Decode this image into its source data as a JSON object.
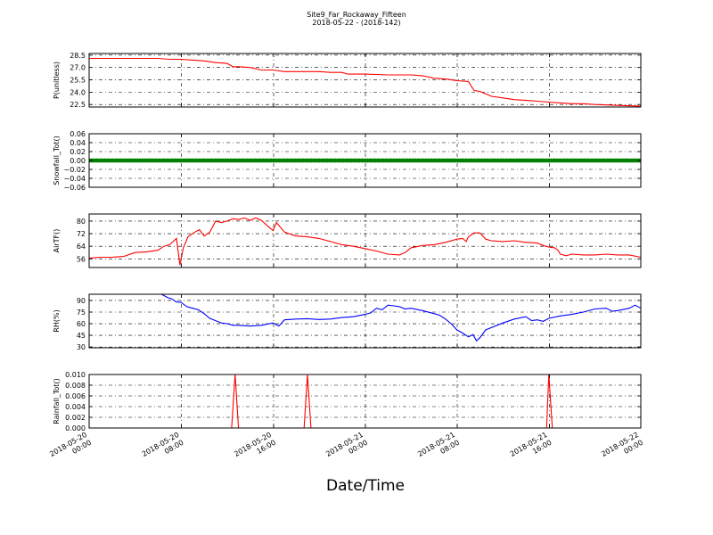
{
  "title": "Site9_Far_Rockaway_Fifteen",
  "subtitle": "2018-05-22 - (2018-142)",
  "xlabel": "Date/Time",
  "x_ticks": [
    {
      "l1": "2018-05-20",
      "l2": "00:00"
    },
    {
      "l1": "2018-05-20",
      "l2": "08:00"
    },
    {
      "l1": "2018-05-20",
      "l2": "16:00"
    },
    {
      "l1": "2018-05-21",
      "l2": "00:00"
    },
    {
      "l1": "2018-05-21",
      "l2": "08:00"
    },
    {
      "l1": "2018-05-21",
      "l2": "16:00"
    },
    {
      "l1": "2018-05-22",
      "l2": "00:00"
    }
  ],
  "chart_data": [
    {
      "type": "line",
      "ylabel": "P(unitless)",
      "color": "#ff0000",
      "ylim": [
        22.2,
        28.7
      ],
      "yticks": [
        "28.5",
        "27.0",
        "25.5",
        "24.0",
        "22.5"
      ],
      "xlim_hours": [
        0,
        48
      ],
      "points": [
        [
          0,
          28.1
        ],
        [
          2,
          28.1
        ],
        [
          4,
          28.1
        ],
        [
          6,
          28.1
        ],
        [
          7,
          28.0
        ],
        [
          8,
          28.0
        ],
        [
          9,
          27.9
        ],
        [
          10,
          27.8
        ],
        [
          11,
          27.6
        ],
        [
          12,
          27.5
        ],
        [
          12.5,
          27.1
        ],
        [
          13,
          27.1
        ],
        [
          14,
          27.0
        ],
        [
          15,
          26.7
        ],
        [
          16,
          26.7
        ],
        [
          17,
          26.5
        ],
        [
          18,
          26.5
        ],
        [
          20,
          26.5
        ],
        [
          21,
          26.4
        ],
        [
          22,
          26.4
        ],
        [
          22.5,
          26.2
        ],
        [
          24,
          26.2
        ],
        [
          26,
          26.1
        ],
        [
          28,
          26.1
        ],
        [
          29,
          26.0
        ],
        [
          30,
          25.7
        ],
        [
          31,
          25.6
        ],
        [
          32,
          25.4
        ],
        [
          33,
          25.3
        ],
        [
          33.5,
          24.2
        ],
        [
          34,
          24.1
        ],
        [
          34.5,
          23.8
        ],
        [
          35,
          23.5
        ],
        [
          36,
          23.3
        ],
        [
          37,
          23.1
        ],
        [
          38,
          23.0
        ],
        [
          39,
          22.9
        ],
        [
          40,
          22.8
        ],
        [
          41,
          22.7
        ],
        [
          42,
          22.6
        ],
        [
          43,
          22.6
        ],
        [
          44,
          22.5
        ],
        [
          46,
          22.4
        ],
        [
          48,
          22.3
        ]
      ]
    },
    {
      "type": "scatter",
      "ylabel": "Snowfall_Tot()",
      "color": "#008000",
      "ylim": [
        -0.06,
        0.06
      ],
      "yticks": [
        "0.06",
        "0.04",
        "0.02",
        "0.00",
        "−0.02",
        "−0.04",
        "−0.06"
      ],
      "xlim_hours": [
        0,
        48
      ],
      "constant_value": 0.0
    },
    {
      "type": "line",
      "ylabel": "AirTF()",
      "color": "#ff0000",
      "ylim": [
        50.5,
        84.5
      ],
      "yticks": [
        "80",
        "72",
        "64",
        "56"
      ],
      "xlim_hours": [
        0,
        48
      ],
      "points": [
        [
          0,
          56.5
        ],
        [
          1,
          57.0
        ],
        [
          2,
          57.0
        ],
        [
          3,
          57.5
        ],
        [
          4,
          60.0
        ],
        [
          5,
          60.5
        ],
        [
          6,
          61.5
        ],
        [
          6.5,
          64.0
        ],
        [
          7,
          65.0
        ],
        [
          7.6,
          69.0
        ],
        [
          7.9,
          52.0
        ],
        [
          8.2,
          63.0
        ],
        [
          8.6,
          70.0
        ],
        [
          9.2,
          73.0
        ],
        [
          9.6,
          74.5
        ],
        [
          10,
          70.5
        ],
        [
          10.5,
          73.0
        ],
        [
          11,
          80.0
        ],
        [
          11.5,
          79.0
        ],
        [
          12,
          80.0
        ],
        [
          12.5,
          81.5
        ],
        [
          13,
          81.0
        ],
        [
          13.5,
          82.0
        ],
        [
          14,
          80.5
        ],
        [
          14.5,
          82.0
        ],
        [
          15,
          80.5
        ],
        [
          15.5,
          77.0
        ],
        [
          16,
          74.0
        ],
        [
          16.3,
          79.0
        ],
        [
          17,
          73.0
        ],
        [
          18,
          70.5
        ],
        [
          19,
          70.0
        ],
        [
          20,
          69.0
        ],
        [
          21,
          67.0
        ],
        [
          22,
          65.0
        ],
        [
          23,
          64.0
        ],
        [
          24,
          62.5
        ],
        [
          25,
          61.0
        ],
        [
          26,
          59.0
        ],
        [
          27,
          58.5
        ],
        [
          27.5,
          60.0
        ],
        [
          28,
          63.0
        ],
        [
          29,
          64.5
        ],
        [
          30,
          65.0
        ],
        [
          31,
          66.5
        ],
        [
          32,
          68.5
        ],
        [
          32.5,
          69.0
        ],
        [
          32.8,
          67.0
        ],
        [
          33,
          70.0
        ],
        [
          33.5,
          72.5
        ],
        [
          34,
          72.5
        ],
        [
          34.5,
          68.5
        ],
        [
          35,
          67.5
        ],
        [
          36,
          67.0
        ],
        [
          37,
          67.5
        ],
        [
          38,
          66.5
        ],
        [
          39,
          66.0
        ],
        [
          39.5,
          64.5
        ],
        [
          40,
          63.5
        ],
        [
          40.5,
          63.0
        ],
        [
          40.8,
          61.5
        ],
        [
          41,
          59.0
        ],
        [
          41.5,
          58.0
        ],
        [
          42,
          59.0
        ],
        [
          43,
          58.5
        ],
        [
          44,
          58.5
        ],
        [
          45,
          59.0
        ],
        [
          46,
          58.5
        ],
        [
          47,
          58.5
        ],
        [
          48,
          57.0
        ]
      ]
    },
    {
      "type": "line",
      "ylabel": "RH(%)",
      "color": "#0000ff",
      "ylim": [
        29,
        98
      ],
      "yticks": [
        "90",
        "75",
        "60",
        "45",
        "30"
      ],
      "xlim_hours": [
        0,
        48
      ],
      "points": [
        [
          6.3,
          98
        ],
        [
          6.8,
          94.0
        ],
        [
          7.2,
          92.0
        ],
        [
          7.6,
          88.0
        ],
        [
          8,
          87.5
        ],
        [
          8.5,
          82.0
        ],
        [
          9,
          80.0
        ],
        [
          9.5,
          78.0
        ],
        [
          10,
          73.0
        ],
        [
          10.5,
          67.0
        ],
        [
          11,
          64.0
        ],
        [
          11.5,
          61.0
        ],
        [
          12,
          60.0
        ],
        [
          12.5,
          58.0
        ],
        [
          13,
          58.0
        ],
        [
          14,
          57.0
        ],
        [
          15,
          58.0
        ],
        [
          16,
          61.0
        ],
        [
          16.5,
          57.0
        ],
        [
          17,
          65.0
        ],
        [
          18,
          66.0
        ],
        [
          19,
          66.5
        ],
        [
          20,
          65.5
        ],
        [
          21,
          66.0
        ],
        [
          22,
          68.0
        ],
        [
          23,
          69.0
        ],
        [
          24,
          72.0
        ],
        [
          24.5,
          74.0
        ],
        [
          25,
          80.0
        ],
        [
          25.5,
          78.0
        ],
        [
          26,
          84.0
        ],
        [
          26.5,
          83.0
        ],
        [
          27,
          82.0
        ],
        [
          27.5,
          79.0
        ],
        [
          28,
          80.0
        ],
        [
          29,
          77.0
        ],
        [
          30,
          73.0
        ],
        [
          30.5,
          71.0
        ],
        [
          31,
          66.0
        ],
        [
          31.5,
          60.0
        ],
        [
          32,
          52.0
        ],
        [
          32.5,
          48.0
        ],
        [
          33,
          43.0
        ],
        [
          33.4,
          46.0
        ],
        [
          33.7,
          38.0
        ],
        [
          34,
          42.0
        ],
        [
          34.5,
          52.0
        ],
        [
          35,
          55.0
        ],
        [
          36,
          61.0
        ],
        [
          37,
          66.0
        ],
        [
          38,
          69.0
        ],
        [
          38.5,
          64.0
        ],
        [
          39,
          65.0
        ],
        [
          39.5,
          63.0
        ],
        [
          40,
          67.0
        ],
        [
          41,
          70.0
        ],
        [
          42,
          72.0
        ],
        [
          43,
          75.0
        ],
        [
          44,
          79.0
        ],
        [
          45,
          80.0
        ],
        [
          45.5,
          76.0
        ],
        [
          46,
          77.0
        ],
        [
          47,
          80.0
        ],
        [
          47.5,
          84.0
        ],
        [
          48,
          80.0
        ]
      ]
    },
    {
      "type": "line",
      "ylabel": "Rainfall_Tot()",
      "color": "#ff0000",
      "ylim": [
        0,
        0.01
      ],
      "yticks": [
        "0.010",
        "0.008",
        "0.006",
        "0.004",
        "0.002",
        "0.000"
      ],
      "xlim_hours": [
        0,
        48
      ],
      "points": [
        [
          0,
          0
        ],
        [
          12.4,
          0
        ],
        [
          12.7,
          0.01
        ],
        [
          13.0,
          0
        ],
        [
          18.7,
          0
        ],
        [
          19.0,
          0.01
        ],
        [
          19.3,
          0
        ],
        [
          39.8,
          0
        ],
        [
          40.0,
          0.01
        ],
        [
          40.3,
          0
        ],
        [
          48,
          0
        ]
      ]
    }
  ]
}
